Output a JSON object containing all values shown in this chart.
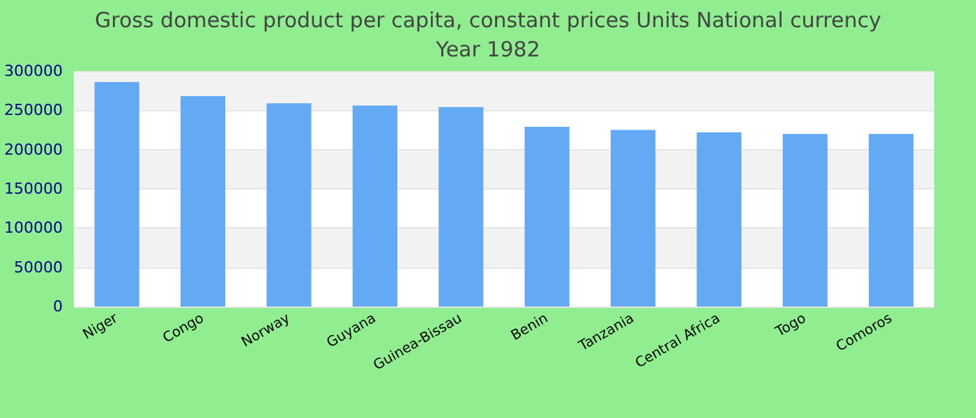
{
  "chart_data": {
    "type": "bar",
    "title": "Gross domestic product per capita, constant prices Units National currency",
    "subtitle": "Year 1982",
    "categories": [
      "Niger",
      "Congo",
      "Norway",
      "Guyana",
      "Guinea-Bissau",
      "Benin",
      "Tanzania",
      "Central Africa",
      "Togo",
      "Comoros"
    ],
    "values": [
      286000,
      268000,
      259000,
      256000,
      254000,
      229000,
      225000,
      222000,
      220000,
      220000
    ],
    "color": "#63a9f4",
    "ylim": [
      0,
      300000
    ],
    "yticks": [
      0,
      50000,
      100000,
      150000,
      200000,
      250000,
      300000
    ],
    "grid": "y"
  }
}
